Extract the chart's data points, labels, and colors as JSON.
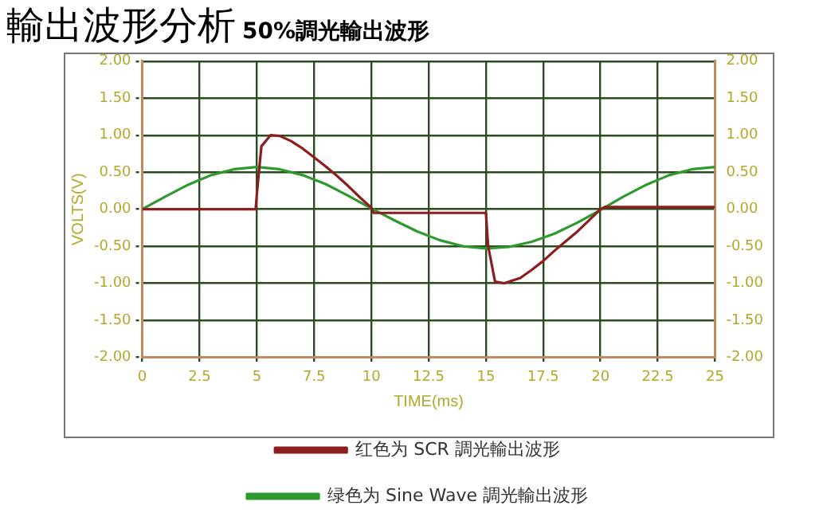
{
  "chart_data": {
    "type": "line",
    "title": "輸出波形分析",
    "subtitle": "50%調光輸出波形",
    "xlabel": "TIME(ms)",
    "ylabel": "VOLTS(V)",
    "xlim": [
      0,
      25
    ],
    "xticks": [
      0,
      2.5,
      5,
      7.5,
      10,
      12.5,
      15,
      17.5,
      20,
      22.5,
      25
    ],
    "ylim": [
      -2,
      2
    ],
    "yticks": [
      {
        "value": -2,
        "label": "-2.00"
      },
      {
        "value": -1.5,
        "label": "-1.50"
      },
      {
        "value": -1,
        "label": "-1.00"
      },
      {
        "value": -0.5,
        "label": "-0.50"
      },
      {
        "value": 0,
        "label": "0.00"
      },
      {
        "value": 0.5,
        "label": "0.50"
      },
      {
        "value": 1,
        "label": "1.00"
      },
      {
        "value": 1.5,
        "label": "1.50"
      },
      {
        "value": 2,
        "label": "2.00"
      }
    ],
    "y2lim": [
      -2,
      2
    ],
    "y2ticks": [
      {
        "value": -2,
        "label": "-2.00"
      },
      {
        "value": -1.5,
        "label": "-1.50"
      },
      {
        "value": -1,
        "label": "-1.00"
      },
      {
        "value": -0.5,
        "label": "-0.50"
      },
      {
        "value": 0,
        "label": "0.00"
      },
      {
        "value": 0.5,
        "label": "0.50"
      },
      {
        "value": 1,
        "label": "1.00"
      },
      {
        "value": 1.5,
        "label": "1.50"
      },
      {
        "value": 2,
        "label": "2.00"
      }
    ],
    "grid": true,
    "legend": "bottom",
    "marker": "none",
    "line_style": "solid",
    "series": [
      {
        "name": "红色为 SCR 調光輸出波形",
        "color": "#8b1e1e",
        "x": [
          0,
          4.95,
          5.0,
          5.2,
          5.6,
          6,
          6.5,
          7,
          7.5,
          8,
          8.5,
          9,
          9.5,
          10,
          10.1,
          15,
          15.1,
          15.4,
          15.8,
          16.5,
          17,
          17.5,
          18,
          18.5,
          19,
          19.5,
          20,
          20.2,
          25
        ],
        "values": [
          0,
          0,
          0.2,
          0.85,
          1.0,
          0.99,
          0.92,
          0.82,
          0.7,
          0.58,
          0.45,
          0.31,
          0.16,
          0.02,
          -0.05,
          -0.05,
          -0.5,
          -0.98,
          -1.0,
          -0.93,
          -0.82,
          -0.7,
          -0.56,
          -0.43,
          -0.3,
          -0.15,
          0,
          0.03,
          0.03
        ]
      },
      {
        "name": "绿色为 Sine Wave 調光輸出波形",
        "color": "#2e9a2e",
        "x": [
          0,
          1,
          2,
          3,
          4,
          5,
          6,
          7,
          8,
          9,
          10,
          11,
          12,
          13,
          14,
          15,
          16,
          17,
          18,
          19,
          20,
          21,
          22,
          23,
          24,
          25
        ],
        "values": [
          0,
          0.17,
          0.33,
          0.46,
          0.54,
          0.57,
          0.54,
          0.46,
          0.34,
          0.18,
          0.01,
          -0.15,
          -0.3,
          -0.42,
          -0.5,
          -0.53,
          -0.51,
          -0.44,
          -0.33,
          -0.18,
          -0.01,
          0.17,
          0.33,
          0.46,
          0.54,
          0.57
        ]
      }
    ]
  }
}
